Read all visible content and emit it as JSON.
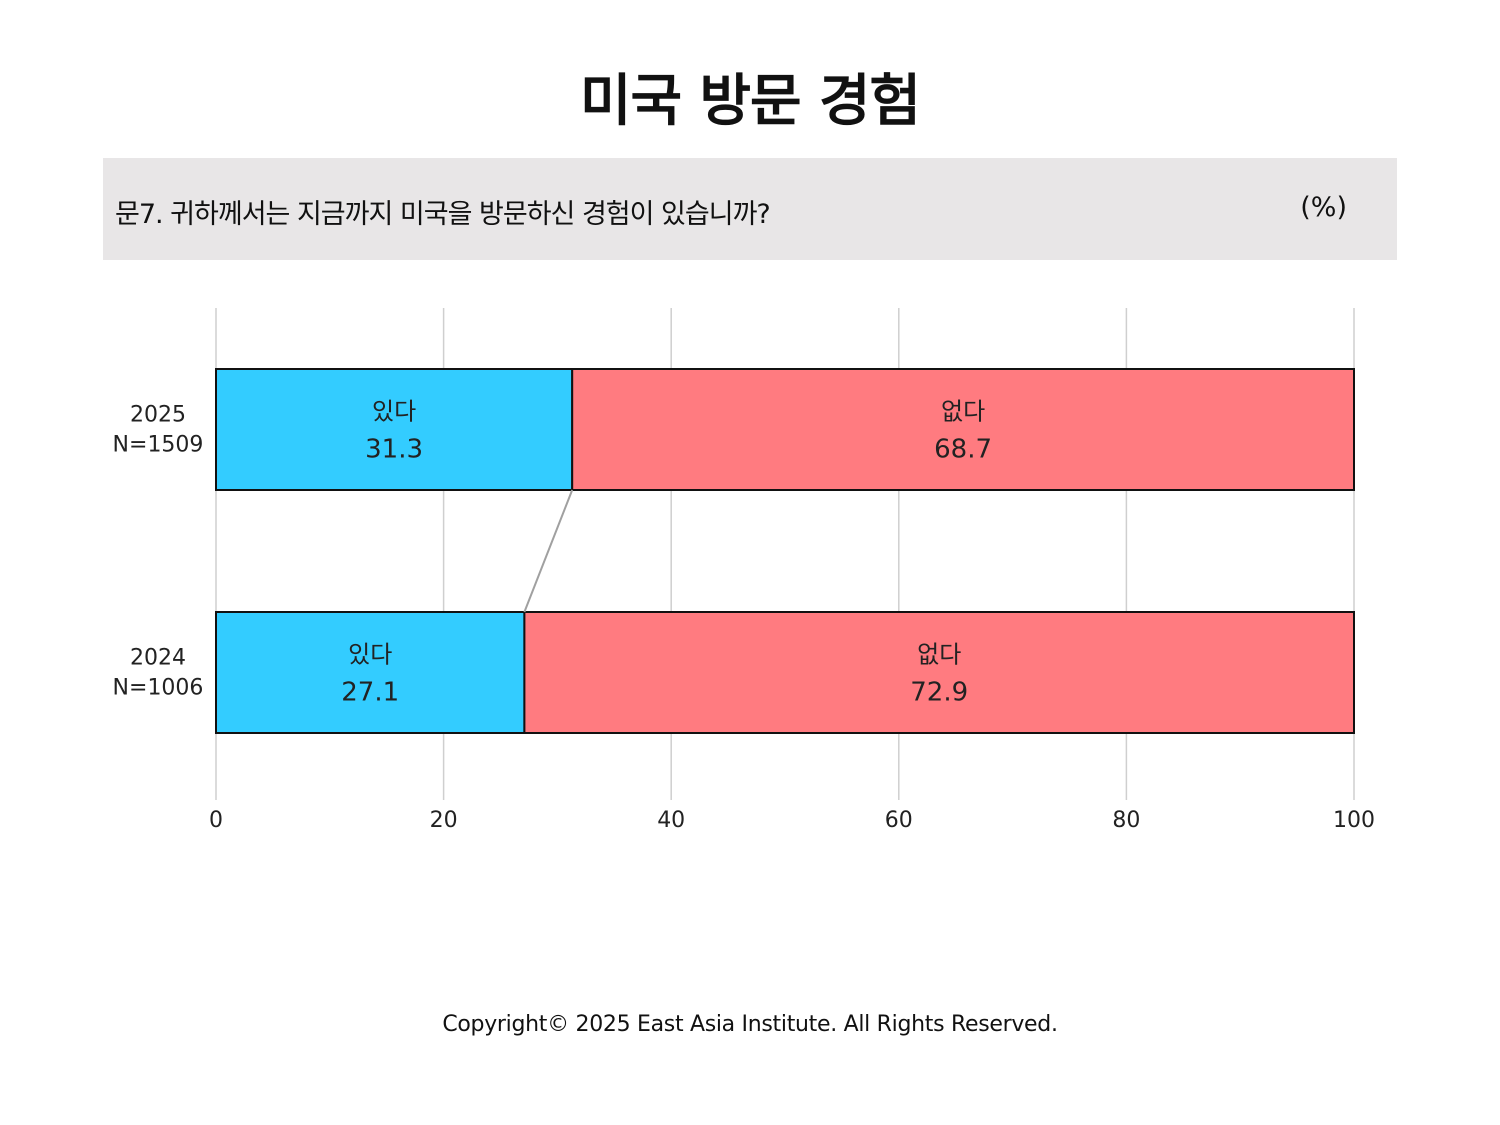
{
  "title": "미국 방문 경험",
  "question": "문7. 귀하께서는 지금까지 미국을 방문하신 경험이 있습니까?",
  "unit": "(%)",
  "footer": "Copyright© 2025 East Asia Institute. All Rights Reserved.",
  "colors": {
    "yes": "#33ccff",
    "no": "#ff7b80",
    "grid": "#cfcfcf",
    "connector": "#a0a0a0"
  },
  "chart_data": {
    "type": "bar",
    "orientation": "horizontal",
    "stacked": true,
    "categories": [
      {
        "year": "2025",
        "n": "N=1509"
      },
      {
        "year": "2024",
        "n": "N=1006"
      }
    ],
    "series": [
      {
        "name": "있다",
        "values": [
          31.3,
          27.1
        ]
      },
      {
        "name": "없다",
        "values": [
          68.7,
          72.9
        ]
      }
    ],
    "xlim": [
      0,
      100
    ],
    "xticks": [
      0,
      20,
      40,
      60,
      80,
      100
    ],
    "grid": true
  }
}
